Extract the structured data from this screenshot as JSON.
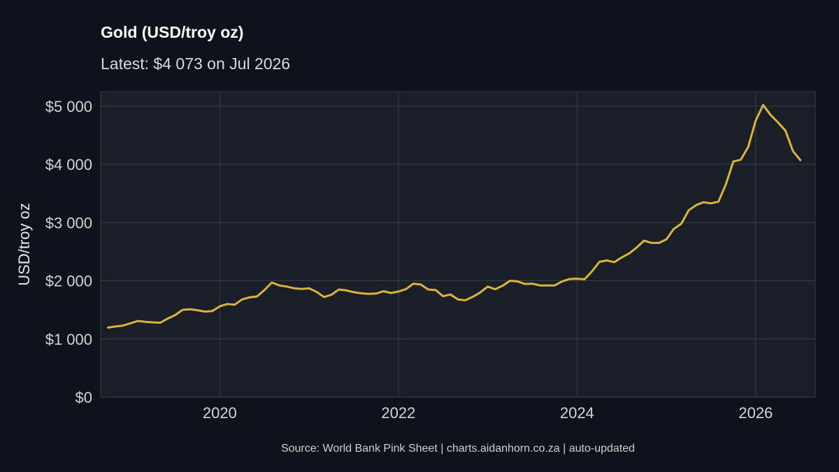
{
  "header": {
    "title": "Gold (USD/troy oz)",
    "subtitle": "Latest: $4 073 on Jul 2026"
  },
  "footer": {
    "caption": "Source: World Bank Pink Sheet | charts.aidanhorn.co.za | auto-updated"
  },
  "colors": {
    "background": "#0e131b",
    "panel": "#1a1e25",
    "grid": "#3a3f47",
    "line": "#d9b43f"
  },
  "chart_data": {
    "type": "line",
    "title": "Gold (USD/troy oz)",
    "subtitle": "Latest: $4 073 on Jul 2026",
    "xlabel": "",
    "ylabel": "USD/troy oz",
    "xlim": [
      "2018-09",
      "2026-09"
    ],
    "ylim": [
      0,
      5250
    ],
    "x_ticks": [
      "2020",
      "2022",
      "2024",
      "2026"
    ],
    "y_ticks": [
      {
        "value": 0,
        "label": "$0"
      },
      {
        "value": 1000,
        "label": "$1 000"
      },
      {
        "value": 2000,
        "label": "$2 000"
      },
      {
        "value": 3000,
        "label": "$3 000"
      },
      {
        "value": 4000,
        "label": "$4 000"
      },
      {
        "value": 5000,
        "label": "$5 000"
      }
    ],
    "grid": true,
    "series": [
      {
        "x": [
          "2018-10",
          "2018-11",
          "2018-12",
          "2019-01",
          "2019-02",
          "2019-03",
          "2019-04",
          "2019-05",
          "2019-06",
          "2019-07",
          "2019-08",
          "2019-09",
          "2019-10",
          "2019-11",
          "2019-12",
          "2020-01",
          "2020-02",
          "2020-03",
          "2020-04",
          "2020-05",
          "2020-06",
          "2020-07",
          "2020-08",
          "2020-09",
          "2020-10",
          "2020-11",
          "2020-12",
          "2021-01",
          "2021-02",
          "2021-03",
          "2021-04",
          "2021-05",
          "2021-06",
          "2021-07",
          "2021-08",
          "2021-09",
          "2021-10",
          "2021-11",
          "2021-12",
          "2022-01",
          "2022-02",
          "2022-03",
          "2022-04",
          "2022-05",
          "2022-06",
          "2022-07",
          "2022-08",
          "2022-09",
          "2022-10",
          "2022-11",
          "2022-12",
          "2023-01",
          "2023-02",
          "2023-03",
          "2023-04",
          "2023-05",
          "2023-06",
          "2023-07",
          "2023-08",
          "2023-09",
          "2023-10",
          "2023-11",
          "2023-12",
          "2024-01",
          "2024-02",
          "2024-03",
          "2024-04",
          "2024-05",
          "2024-06",
          "2024-07",
          "2024-08",
          "2024-09",
          "2024-10",
          "2024-11",
          "2024-12",
          "2025-01",
          "2025-02",
          "2025-03",
          "2025-04",
          "2025-05",
          "2025-06",
          "2025-07",
          "2025-08",
          "2025-09",
          "2025-10",
          "2025-11",
          "2025-12",
          "2026-01",
          "2026-02",
          "2026-03",
          "2026-04",
          "2026-05",
          "2026-06",
          "2026-07"
        ],
        "values": [
          1195,
          1215,
          1230,
          1270,
          1310,
          1295,
          1285,
          1280,
          1350,
          1410,
          1500,
          1510,
          1495,
          1470,
          1480,
          1560,
          1600,
          1590,
          1680,
          1715,
          1730,
          1840,
          1970,
          1920,
          1900,
          1870,
          1860,
          1870,
          1810,
          1720,
          1760,
          1850,
          1835,
          1805,
          1785,
          1775,
          1780,
          1820,
          1790,
          1815,
          1855,
          1950,
          1935,
          1850,
          1840,
          1735,
          1765,
          1680,
          1665,
          1725,
          1800,
          1900,
          1855,
          1915,
          2000,
          1990,
          1945,
          1950,
          1920,
          1920,
          1920,
          1990,
          2030,
          2035,
          2025,
          2160,
          2325,
          2350,
          2320,
          2400,
          2470,
          2570,
          2690,
          2650,
          2650,
          2710,
          2890,
          2980,
          3210,
          3300,
          3350,
          3330,
          3360,
          3660,
          4050,
          4080,
          4300,
          4750,
          5020,
          4850,
          4720,
          4580,
          4230,
          4073
        ]
      }
    ]
  }
}
